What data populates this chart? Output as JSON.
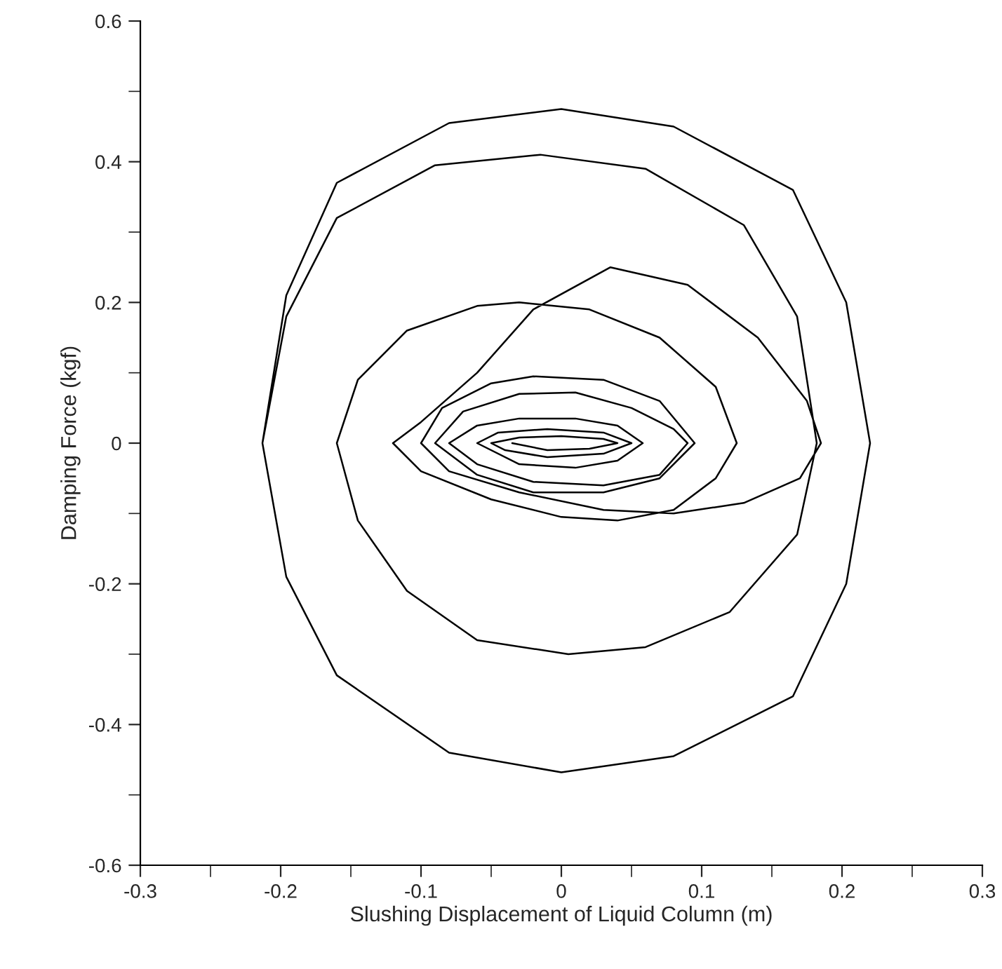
{
  "chart_data": {
    "type": "line",
    "xlabel": "Slushing Displacement of Liquid Column (m)",
    "ylabel": "Damping Force (kgf)",
    "xlim": [
      -0.3,
      0.3
    ],
    "xticks": [
      -0.3,
      -0.2,
      -0.1,
      0,
      0.1,
      0.2,
      0.3
    ],
    "ylim": [
      -0.6,
      0.6
    ],
    "yticks": [
      -0.6,
      -0.4,
      -0.2,
      0,
      0.2,
      0.4,
      0.6
    ],
    "grid": false,
    "marker": "none",
    "line_style": "solid",
    "series": [
      {
        "color": "#000000",
        "x": [
          -0.213,
          -0.196,
          -0.16,
          -0.08,
          0,
          0.08,
          0.165,
          0.203,
          0.22,
          0.203,
          0.165,
          0.08,
          0,
          -0.08,
          -0.16,
          -0.196,
          -0.213,
          -0.196,
          -0.16,
          -0.09,
          -0.015,
          0.06,
          0.13,
          0.168,
          0.182,
          0.168,
          0.12,
          0.06,
          0.005,
          -0.06,
          -0.11,
          -0.145,
          -0.16,
          -0.145,
          -0.11,
          -0.06,
          -0.03,
          0.02,
          0.07,
          0.11,
          0.125,
          0.11,
          0.08,
          0.04,
          0,
          -0.05,
          -0.1,
          -0.12,
          -0.1,
          -0.06,
          -0.02,
          0.035,
          0.09,
          0.14,
          0.175,
          0.185,
          0.17,
          0.13,
          0.08,
          0.03,
          -0.03,
          -0.08,
          -0.1,
          -0.085,
          -0.05,
          -0.02,
          0.03,
          0.07,
          0.095,
          0.07,
          0.03,
          -0.02,
          -0.06,
          -0.09,
          -0.07,
          -0.03,
          0.01,
          0.05,
          0.08,
          0.09,
          0.07,
          0.03,
          -0.02,
          -0.06,
          -0.08,
          -0.06,
          -0.03,
          0.01,
          0.04,
          0.058,
          0.04,
          0.01,
          -0.03,
          -0.06,
          -0.045,
          -0.01,
          0.03,
          0.05,
          0.03,
          -0.01,
          -0.04,
          -0.05,
          -0.03,
          0,
          0.03,
          0.04,
          0.02,
          -0.01,
          -0.035
        ],
        "values": [
          0,
          0.21,
          0.37,
          0.455,
          0.475,
          0.45,
          0.36,
          0.2,
          0,
          -0.2,
          -0.36,
          -0.445,
          -0.468,
          -0.44,
          -0.33,
          -0.19,
          0,
          0.18,
          0.32,
          0.395,
          0.41,
          0.39,
          0.31,
          0.18,
          0,
          -0.13,
          -0.24,
          -0.29,
          -0.3,
          -0.28,
          -0.21,
          -0.11,
          0,
          0.09,
          0.16,
          0.195,
          0.2,
          0.19,
          0.15,
          0.08,
          0,
          -0.05,
          -0.095,
          -0.11,
          -0.105,
          -0.08,
          -0.04,
          0,
          0.03,
          0.1,
          0.19,
          0.25,
          0.225,
          0.15,
          0.06,
          0,
          -0.05,
          -0.085,
          -0.1,
          -0.095,
          -0.07,
          -0.04,
          0,
          0.05,
          0.085,
          0.095,
          0.09,
          0.06,
          0,
          -0.05,
          -0.07,
          -0.07,
          -0.045,
          0,
          0.045,
          0.07,
          0.072,
          0.05,
          0.02,
          0,
          -0.045,
          -0.06,
          -0.055,
          -0.03,
          0,
          0.025,
          0.035,
          0.035,
          0.025,
          0,
          -0.025,
          -0.035,
          -0.03,
          0,
          0.015,
          0.02,
          0.015,
          0,
          -0.015,
          -0.02,
          -0.01,
          0,
          0.008,
          0.01,
          0.006,
          0,
          -0.008,
          -0.01,
          0
        ]
      }
    ]
  }
}
